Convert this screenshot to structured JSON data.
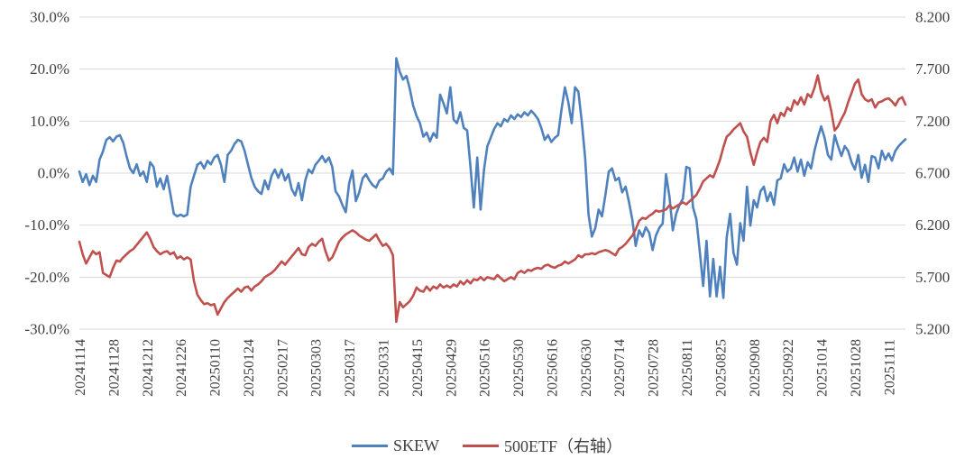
{
  "chart_data": {
    "type": "line",
    "title": "",
    "grid": "horizontal-only",
    "background": "#ffffff",
    "gridline_color": "#d9d9d9",
    "axis_text_color": "#404040",
    "legend_position": "bottom-center",
    "x_tick_labels": [
      "20241114",
      "20241128",
      "20241212",
      "20241226",
      "20250110",
      "20250124",
      "20250217",
      "20250303",
      "20250317",
      "20250331",
      "20250415",
      "20250429",
      "20250516",
      "20250530",
      "20250616",
      "20250630",
      "20250714",
      "20250728",
      "20250811",
      "20250825",
      "20250908",
      "20250922",
      "20251014",
      "20251028",
      "20251111"
    ],
    "x_ticks_every_n_points": 10,
    "left_axis": {
      "tick_labels": [
        "30.0%",
        "20.0%",
        "10.0%",
        "0.0%",
        "-10.0%",
        "-20.0%",
        "-30.0%"
      ],
      "max": 30,
      "min": -30,
      "unit": "%"
    },
    "right_axis": {
      "tick_labels": [
        "8.200",
        "7.700",
        "7.200",
        "6.700",
        "6.200",
        "5.700",
        "5.200"
      ],
      "max": 8.2,
      "min": 5.2
    },
    "legend": [
      "SKEW",
      "500ETF（右轴）"
    ],
    "series": [
      {
        "name": "SKEW",
        "axis": "left",
        "color": "#4f81bd",
        "values": [
          0.3,
          -1.7,
          -0.2,
          -2.3,
          -0.5,
          -1.7,
          2.6,
          4.2,
          6.4,
          6.9,
          6.1,
          7.0,
          7.3,
          5.9,
          3.3,
          0.9,
          0.0,
          1.7,
          -0.5,
          0.3,
          -1.7,
          2.1,
          1.2,
          -2.6,
          -1.0,
          -3.1,
          -0.5,
          -4.0,
          -7.8,
          -8.3,
          -8.0,
          -8.3,
          -8.0,
          -2.6,
          -0.5,
          1.6,
          2.1,
          0.9,
          2.4,
          1.7,
          3.0,
          3.5,
          1.6,
          -1.7,
          3.5,
          4.3,
          5.6,
          6.4,
          6.1,
          4.3,
          1.7,
          -0.9,
          -2.6,
          -3.5,
          -4.0,
          -1.4,
          -3.1,
          -0.5,
          0.7,
          -0.9,
          0.7,
          -1.4,
          -0.2,
          -3.1,
          -4.3,
          -1.9,
          -5.2,
          -1.4,
          0.7,
          0.0,
          1.6,
          2.4,
          3.3,
          2.1,
          3.0,
          1.2,
          -3.5,
          -4.5,
          -6.1,
          -7.5,
          -2.0,
          0.5,
          -5.4,
          -3.7,
          -1.0,
          -0.2,
          -1.4,
          -2.3,
          -2.8,
          -1.4,
          -1.0,
          0.3,
          0.9,
          -0.2,
          22.1,
          19.5,
          18.0,
          18.7,
          16.2,
          13.0,
          11.0,
          9.6,
          7.0,
          7.8,
          6.1,
          7.7,
          6.8,
          15.1,
          13.4,
          11.5,
          16.5,
          10.3,
          9.6,
          11.7,
          8.7,
          8.2,
          1.2,
          -6.6,
          3.0,
          -7.0,
          0.7,
          5.2,
          6.8,
          8.5,
          9.6,
          9.0,
          10.4,
          9.9,
          11.1,
          10.4,
          11.3,
          10.8,
          11.7,
          11.1,
          12.0,
          11.3,
          10.4,
          8.7,
          6.4,
          7.3,
          6.0,
          6.8,
          7.3,
          12.2,
          16.5,
          13.7,
          9.6,
          16.5,
          15.7,
          9.9,
          3.0,
          -8.0,
          -12.2,
          -10.6,
          -7.0,
          -8.3,
          -4.3,
          0.3,
          0.9,
          -1.4,
          -0.9,
          -3.7,
          -2.6,
          -5.5,
          -9.0,
          -14.0,
          -11.0,
          -12.2,
          -10.4,
          -11.5,
          -14.8,
          -12.0,
          -10.5,
          -9.7,
          -0.2,
          -4.5,
          -11.0,
          -7.8,
          -6.1,
          -4.9,
          1.2,
          0.9,
          -6.6,
          -8.9,
          -15.0,
          -21.7,
          -13.0,
          -23.7,
          -16.5,
          -23.7,
          -18.0,
          -24.0,
          -12.3,
          -7.8,
          -15.3,
          -17.6,
          -9.6,
          -13.0,
          -2.6,
          -10.1,
          -5.2,
          -6.6,
          -3.5,
          -2.6,
          -5.4,
          -3.7,
          -6.1,
          -1.4,
          -1.0,
          1.7,
          0.3,
          0.9,
          3.0,
          0.3,
          2.6,
          -0.5,
          2.1,
          0.9,
          4.3,
          6.8,
          9.0,
          6.8,
          3.5,
          2.6,
          7.3,
          5.2,
          3.3,
          5.2,
          4.3,
          2.1,
          0.7,
          3.5,
          -0.9,
          1.6,
          -1.7,
          3.3,
          3.0,
          0.9,
          4.3,
          2.6,
          3.8,
          2.4,
          4.3,
          5.2,
          5.9,
          6.5
        ]
      },
      {
        "name": "500ETF（右轴）",
        "axis": "right",
        "color": "#c0504d",
        "values": [
          6.04,
          5.92,
          5.83,
          5.89,
          5.95,
          5.92,
          5.94,
          5.74,
          5.72,
          5.7,
          5.79,
          5.86,
          5.85,
          5.89,
          5.92,
          5.95,
          5.97,
          6.01,
          6.05,
          6.09,
          6.13,
          6.07,
          5.99,
          5.95,
          5.92,
          5.94,
          5.95,
          5.92,
          5.94,
          5.88,
          5.9,
          5.87,
          5.89,
          5.87,
          5.66,
          5.53,
          5.48,
          5.44,
          5.45,
          5.43,
          5.44,
          5.34,
          5.4,
          5.46,
          5.5,
          5.53,
          5.56,
          5.59,
          5.56,
          5.6,
          5.61,
          5.57,
          5.61,
          5.63,
          5.66,
          5.7,
          5.72,
          5.74,
          5.77,
          5.81,
          5.85,
          5.82,
          5.86,
          5.9,
          5.94,
          5.98,
          5.92,
          5.91,
          5.99,
          6.02,
          6.0,
          6.04,
          6.07,
          5.95,
          5.86,
          5.89,
          5.96,
          6.04,
          6.08,
          6.11,
          6.13,
          6.15,
          6.13,
          6.1,
          6.08,
          6.06,
          6.05,
          6.08,
          6.11,
          6.05,
          6.0,
          6.02,
          5.98,
          5.91,
          5.27,
          5.46,
          5.41,
          5.44,
          5.47,
          5.52,
          5.6,
          5.57,
          5.56,
          5.61,
          5.57,
          5.61,
          5.59,
          5.63,
          5.6,
          5.62,
          5.6,
          5.63,
          5.61,
          5.66,
          5.63,
          5.67,
          5.64,
          5.68,
          5.67,
          5.7,
          5.67,
          5.7,
          5.69,
          5.68,
          5.72,
          5.69,
          5.66,
          5.68,
          5.7,
          5.68,
          5.74,
          5.76,
          5.74,
          5.77,
          5.76,
          5.78,
          5.79,
          5.78,
          5.81,
          5.82,
          5.8,
          5.79,
          5.81,
          5.82,
          5.85,
          5.83,
          5.85,
          5.87,
          5.91,
          5.89,
          5.92,
          5.92,
          5.93,
          5.92,
          5.94,
          5.95,
          5.96,
          5.95,
          5.93,
          5.91,
          5.97,
          5.99,
          6.02,
          6.06,
          6.1,
          6.16,
          6.24,
          6.27,
          6.26,
          6.29,
          6.31,
          6.34,
          6.33,
          6.34,
          6.35,
          6.39,
          6.36,
          6.38,
          6.4,
          6.42,
          6.4,
          6.43,
          6.46,
          6.49,
          6.55,
          6.62,
          6.65,
          6.68,
          6.66,
          6.74,
          6.83,
          6.95,
          7.05,
          7.08,
          7.12,
          7.15,
          7.18,
          7.1,
          7.05,
          6.9,
          6.78,
          6.9,
          7.0,
          7.04,
          7.0,
          7.2,
          7.26,
          7.18,
          7.28,
          7.25,
          7.33,
          7.3,
          7.4,
          7.36,
          7.43,
          7.36,
          7.46,
          7.43,
          7.52,
          7.64,
          7.48,
          7.4,
          7.44,
          7.3,
          7.11,
          7.15,
          7.22,
          7.28,
          7.38,
          7.47,
          7.56,
          7.6,
          7.46,
          7.41,
          7.39,
          7.41,
          7.33,
          7.38,
          7.39,
          7.41,
          7.42,
          7.39,
          7.35,
          7.41,
          7.43,
          7.36
        ]
      }
    ]
  }
}
